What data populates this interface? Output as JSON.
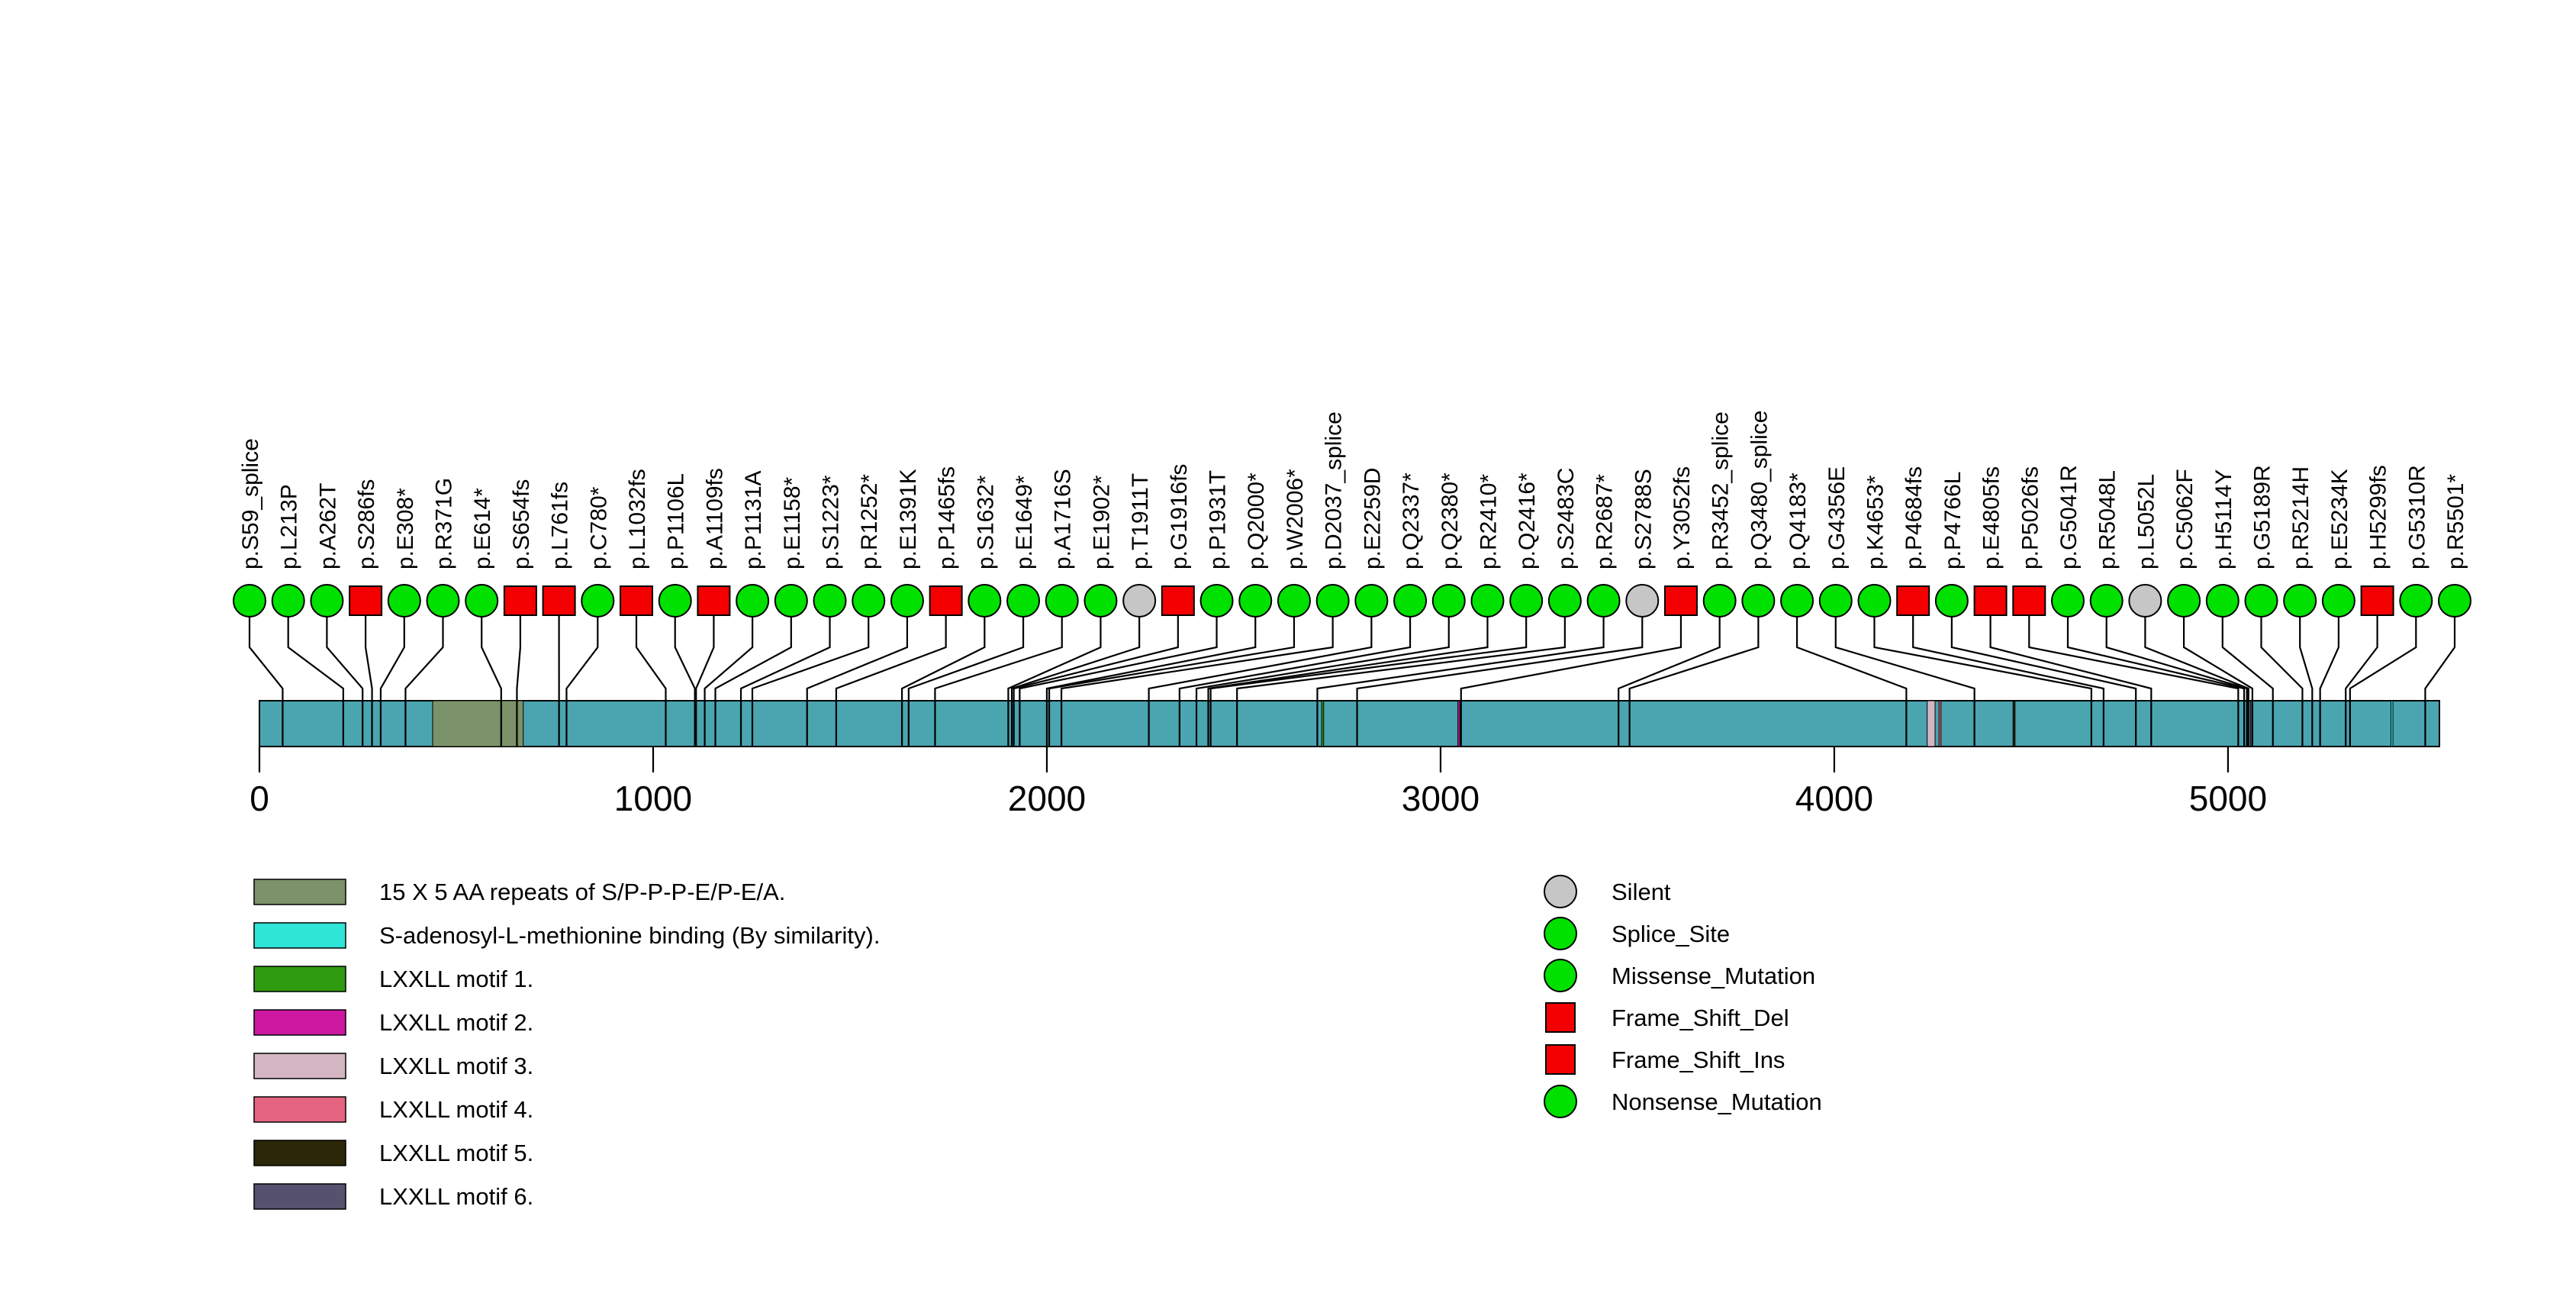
{
  "chart_data": {
    "type": "lollipop",
    "xlim": [
      0,
      5537
    ],
    "axis_ticks": [
      0,
      1000,
      2000,
      3000,
      4000,
      5000
    ],
    "protein_bar_color": "#4AA5B0",
    "marker_styles": {
      "green-circle": {
        "shape": "circle",
        "fill": "#00E100"
      },
      "gray-circle": {
        "shape": "circle",
        "fill": "#C6C6C6"
      },
      "red-square": {
        "shape": "square",
        "fill": "#F40000"
      }
    },
    "mutations": [
      {
        "label": "p.S59_splice",
        "pos": 59,
        "marker": "green-circle"
      },
      {
        "label": "p.L213P",
        "pos": 213,
        "marker": "green-circle"
      },
      {
        "label": "p.A262T",
        "pos": 262,
        "marker": "green-circle"
      },
      {
        "label": "p.S286fs",
        "pos": 286,
        "marker": "red-square"
      },
      {
        "label": "p.E308*",
        "pos": 308,
        "marker": "green-circle"
      },
      {
        "label": "p.R371G",
        "pos": 371,
        "marker": "green-circle"
      },
      {
        "label": "p.E614*",
        "pos": 614,
        "marker": "green-circle"
      },
      {
        "label": "p.S654fs",
        "pos": 654,
        "marker": "red-square"
      },
      {
        "label": "p.L761fs",
        "pos": 761,
        "marker": "red-square"
      },
      {
        "label": "p.C780*",
        "pos": 780,
        "marker": "green-circle"
      },
      {
        "label": "p.L1032fs",
        "pos": 1032,
        "marker": "red-square"
      },
      {
        "label": "p.P1106L",
        "pos": 1106,
        "marker": "green-circle"
      },
      {
        "label": "p.A1109fs",
        "pos": 1109,
        "marker": "red-square"
      },
      {
        "label": "p.P1131A",
        "pos": 1131,
        "marker": "green-circle"
      },
      {
        "label": "p.E1158*",
        "pos": 1158,
        "marker": "green-circle"
      },
      {
        "label": "p.S1223*",
        "pos": 1223,
        "marker": "green-circle"
      },
      {
        "label": "p.R1252*",
        "pos": 1252,
        "marker": "green-circle"
      },
      {
        "label": "p.E1391K",
        "pos": 1391,
        "marker": "green-circle"
      },
      {
        "label": "p.P1465fs",
        "pos": 1465,
        "marker": "red-square"
      },
      {
        "label": "p.S1632*",
        "pos": 1632,
        "marker": "green-circle"
      },
      {
        "label": "p.E1649*",
        "pos": 1649,
        "marker": "green-circle"
      },
      {
        "label": "p.A1716S",
        "pos": 1716,
        "marker": "green-circle"
      },
      {
        "label": "p.E1902*",
        "pos": 1902,
        "marker": "green-circle"
      },
      {
        "label": "p.T1911T",
        "pos": 1911,
        "marker": "gray-circle"
      },
      {
        "label": "p.G1916fs",
        "pos": 1916,
        "marker": "red-square"
      },
      {
        "label": "p.P1931T",
        "pos": 1931,
        "marker": "green-circle"
      },
      {
        "label": "p.Q2000*",
        "pos": 2000,
        "marker": "green-circle"
      },
      {
        "label": "p.W2006*",
        "pos": 2006,
        "marker": "green-circle"
      },
      {
        "label": "p.D2037_splice",
        "pos": 2037,
        "marker": "green-circle"
      },
      {
        "label": "p.E2259D",
        "pos": 2259,
        "marker": "green-circle"
      },
      {
        "label": "p.Q2337*",
        "pos": 2337,
        "marker": "green-circle"
      },
      {
        "label": "p.Q2380*",
        "pos": 2380,
        "marker": "green-circle"
      },
      {
        "label": "p.R2410*",
        "pos": 2410,
        "marker": "green-circle"
      },
      {
        "label": "p.Q2416*",
        "pos": 2416,
        "marker": "green-circle"
      },
      {
        "label": "p.S2483C",
        "pos": 2483,
        "marker": "green-circle"
      },
      {
        "label": "p.R2687*",
        "pos": 2687,
        "marker": "green-circle"
      },
      {
        "label": "p.S2788S",
        "pos": 2788,
        "marker": "gray-circle"
      },
      {
        "label": "p.Y3052fs",
        "pos": 3052,
        "marker": "red-square"
      },
      {
        "label": "p.R3452_splice",
        "pos": 3452,
        "marker": "green-circle"
      },
      {
        "label": "p.Q3480_splice",
        "pos": 3480,
        "marker": "green-circle"
      },
      {
        "label": "p.Q4183*",
        "pos": 4183,
        "marker": "green-circle"
      },
      {
        "label": "p.G4356E",
        "pos": 4356,
        "marker": "green-circle"
      },
      {
        "label": "p.K4653*",
        "pos": 4653,
        "marker": "green-circle"
      },
      {
        "label": "p.P4684fs",
        "pos": 4684,
        "marker": "red-square"
      },
      {
        "label": "p.P4766L",
        "pos": 4766,
        "marker": "green-circle"
      },
      {
        "label": "p.E4805fs",
        "pos": 4805,
        "marker": "red-square"
      },
      {
        "label": "p.P5026fs",
        "pos": 5026,
        "marker": "red-square"
      },
      {
        "label": "p.G5041R",
        "pos": 5041,
        "marker": "green-circle"
      },
      {
        "label": "p.R5048L",
        "pos": 5048,
        "marker": "green-circle"
      },
      {
        "label": "p.L5052L",
        "pos": 5052,
        "marker": "gray-circle"
      },
      {
        "label": "p.C5062F",
        "pos": 5062,
        "marker": "green-circle"
      },
      {
        "label": "p.H5114Y",
        "pos": 5114,
        "marker": "green-circle"
      },
      {
        "label": "p.G5189R",
        "pos": 5189,
        "marker": "green-circle"
      },
      {
        "label": "p.R5214H",
        "pos": 5214,
        "marker": "green-circle"
      },
      {
        "label": "p.E5234K",
        "pos": 5234,
        "marker": "green-circle"
      },
      {
        "label": "p.H5299fs",
        "pos": 5299,
        "marker": "red-square"
      },
      {
        "label": "p.G5310R",
        "pos": 5310,
        "marker": "green-circle"
      },
      {
        "label": "p.R5501*",
        "pos": 5501,
        "marker": "green-circle"
      }
    ],
    "domains": [
      {
        "label": "15 X 5 AA repeats of S/P-P-P-E/P-E/A.",
        "color": "#7C9268",
        "start": 440,
        "end": 670
      },
      {
        "label": "S-adenosyl-L-methionine binding (By similarity).",
        "color": "#2FE5D5",
        "start": 5414,
        "end": 5418
      },
      {
        "label": "LXXLL motif 1.",
        "color": "#2E9B11",
        "start": 2698,
        "end": 2703
      },
      {
        "label": "LXXLL motif 2.",
        "color": "#CC17A1",
        "start": 3044,
        "end": 3049
      },
      {
        "label": "LXXLL motif 3.",
        "color": "#D4B6C3",
        "start": 4236,
        "end": 4256
      },
      {
        "label": "LXXLL motif 4.",
        "color": "#E5647F",
        "start": 4266,
        "end": 4271
      },
      {
        "label": "LXXLL motif 5.",
        "color": "#2B2708",
        "start": 4454,
        "end": 4459
      },
      {
        "label": "LXXLL motif 6.",
        "color": "#575170",
        "start": 5057,
        "end": 5062
      }
    ],
    "legend_mutation_types": [
      {
        "label": "Silent",
        "marker": "gray-circle"
      },
      {
        "label": "Splice_Site",
        "marker": "green-circle"
      },
      {
        "label": "Missense_Mutation",
        "marker": "green-circle"
      },
      {
        "label": "Frame_Shift_Del",
        "marker": "red-square"
      },
      {
        "label": "Frame_Shift_Ins",
        "marker": "red-square"
      },
      {
        "label": "Nonsense_Mutation",
        "marker": "green-circle"
      }
    ]
  }
}
